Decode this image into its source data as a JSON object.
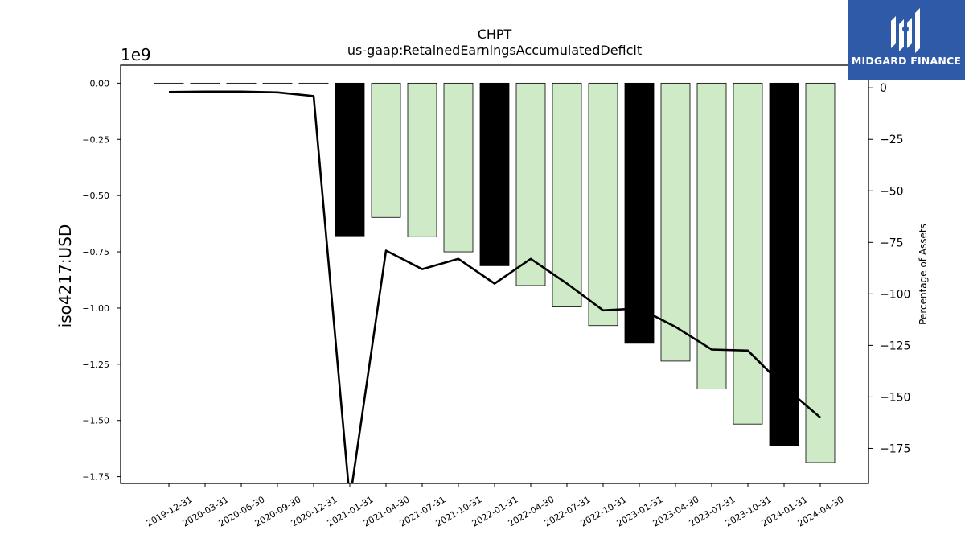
{
  "chart_data": {
    "type": "bar",
    "title": "CHPT",
    "subtitle": "us-gaap:RetainedEarningsAccumulatedDeficit",
    "ylabel": "iso4217:USD",
    "y_offset_label": "1e9",
    "y2label": "Percentage of Assets",
    "categories": [
      "2019-12-31",
      "2020-03-31",
      "2020-06-30",
      "2020-09-30",
      "2020-12-31",
      "2021-01-31",
      "2021-04-30",
      "2021-07-31",
      "2021-10-31",
      "2022-01-31",
      "2022-04-30",
      "2022-07-31",
      "2022-10-31",
      "2023-01-31",
      "2023-04-30",
      "2023-07-31",
      "2023-10-31",
      "2024-01-31",
      "2024-04-30"
    ],
    "series": [
      {
        "values": [
          -0.0025,
          -0.0025,
          -0.0025,
          -0.0025,
          -0.003,
          -0.679,
          -0.597,
          -0.683,
          -0.75,
          -0.812,
          -0.9,
          -0.995,
          -1.078,
          -1.157,
          -1.236,
          -1.36,
          -1.516,
          -1.613,
          -1.687
        ],
        "annual": [
          false,
          false,
          false,
          false,
          false,
          true,
          false,
          false,
          false,
          true,
          false,
          false,
          false,
          true,
          false,
          false,
          false,
          true,
          false
        ],
        "annual_color": "#000000",
        "quarterly_color": "#ceeac7"
      },
      {
        "axis": "right",
        "type": "line",
        "values": [
          -2,
          -1.8,
          -1.8,
          -2.2,
          -4,
          -200,
          -79,
          -88,
          -83,
          -95,
          -83,
          -95,
          -108,
          -107,
          -116,
          -127,
          -127.5,
          -145,
          -160
        ],
        "color": "#000000"
      }
    ],
    "ylim": [
      -1.78,
      0.08
    ],
    "yticks": [
      "0.00",
      "−0.25",
      "−0.50",
      "−0.75",
      "−1.00",
      "−1.25",
      "−1.50",
      "−1.75"
    ],
    "ytick_values": [
      0,
      -0.25,
      -0.5,
      -0.75,
      -1.0,
      -1.25,
      -1.5,
      -1.75
    ],
    "y2lim": [
      -192,
      11
    ],
    "y2ticks": [
      "0",
      "−25",
      "−50",
      "−75",
      "−100",
      "−125",
      "−150",
      "−175"
    ],
    "y2tick_values": [
      0,
      -25,
      -50,
      -75,
      -100,
      -125,
      -150,
      -175
    ],
    "grid": false
  },
  "logo": {
    "text": "MIDGARD FINANCE"
  }
}
